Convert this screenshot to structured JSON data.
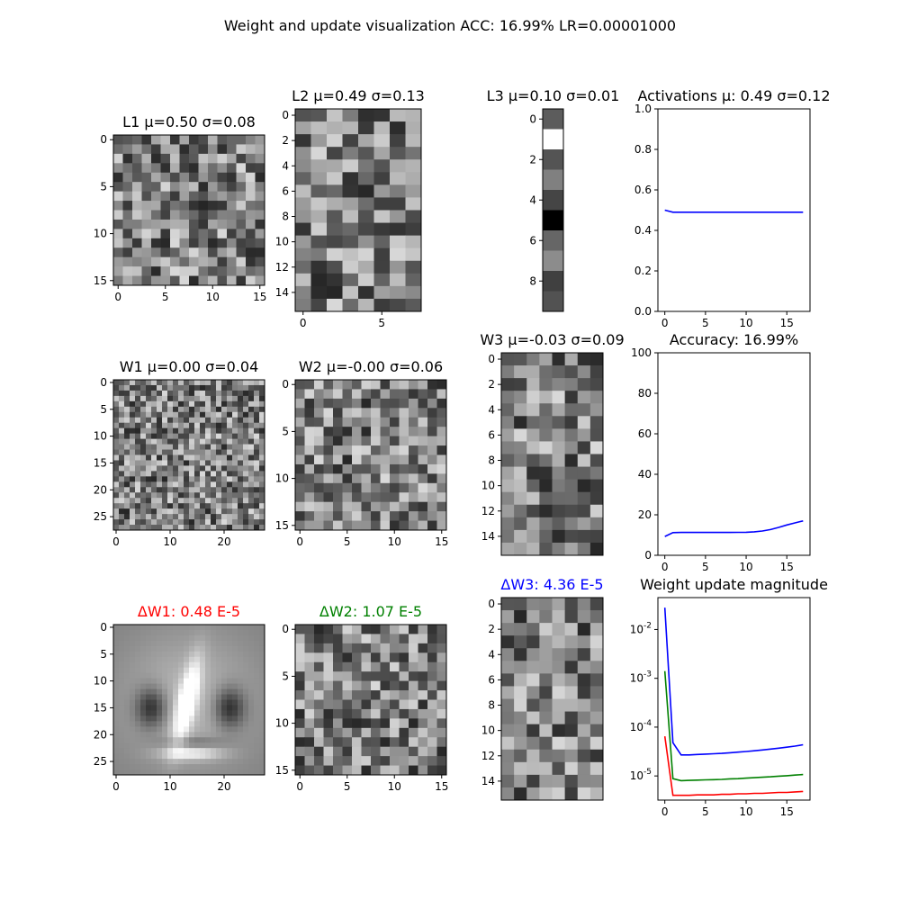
{
  "figure": {
    "suptitle": "Weight and update visualization ACC: 16.99% LR=0.00001000"
  },
  "colors": {
    "dw1": "#ff0000",
    "dw2": "#008000",
    "dw3": "#0000ff",
    "line": "#0000ff"
  },
  "chart_data": [
    {
      "id": "L1",
      "type": "heatmap",
      "title": "L1 μ=0.50 σ=0.08",
      "rows": 16,
      "cols": 16,
      "xticks": [
        0,
        5,
        10,
        15
      ],
      "yticks": [
        0,
        5,
        10,
        15
      ],
      "mean": 0.5,
      "std": 0.08,
      "seed": 11,
      "colormap": "gray"
    },
    {
      "id": "L2",
      "type": "heatmap",
      "title": "L2 μ=0.49 σ=0.13",
      "rows": 16,
      "cols": 8,
      "xticks": [
        0,
        5
      ],
      "yticks": [
        0,
        2,
        4,
        6,
        8,
        10,
        12,
        14
      ],
      "mean": 0.49,
      "std": 0.13,
      "seed": 22,
      "colormap": "gray"
    },
    {
      "id": "L3",
      "type": "heatmap",
      "title": "L3 μ=0.10 σ=0.01",
      "rows": 10,
      "cols": 1,
      "xticks": [],
      "yticks": [
        0,
        2,
        4,
        6,
        8
      ],
      "values": [
        0.36,
        1.0,
        0.33,
        0.5,
        0.27,
        0.0,
        0.4,
        0.55,
        0.25,
        0.32
      ],
      "mean": 0.1,
      "std": 0.01,
      "colormap": "gray"
    },
    {
      "id": "activations",
      "type": "line",
      "title": "Activations μ: 0.49 σ=0.12",
      "x": [
        0,
        1,
        2,
        3,
        4,
        5,
        6,
        7,
        8,
        9,
        10,
        11,
        12,
        13,
        14,
        15,
        16,
        17
      ],
      "series": [
        {
          "values": [
            0.5,
            0.49,
            0.49,
            0.49,
            0.49,
            0.49,
            0.49,
            0.49,
            0.49,
            0.49,
            0.49,
            0.49,
            0.49,
            0.49,
            0.49,
            0.49,
            0.49,
            0.49
          ],
          "color": "#0000ff"
        }
      ],
      "xlim": [
        -0.85,
        17.85
      ],
      "ylim": [
        0.0,
        1.0
      ],
      "xticks": [
        0,
        5,
        10,
        15
      ],
      "yticks": [
        0.0,
        0.2,
        0.4,
        0.6,
        0.8,
        1.0
      ],
      "ytick_labels": [
        "0.0",
        "0.2",
        "0.4",
        "0.6",
        "0.8",
        "1.0"
      ],
      "yscale": "linear"
    },
    {
      "id": "W1",
      "type": "heatmap",
      "title": "W1 μ=0.00 σ=0.04",
      "rows": 28,
      "cols": 28,
      "xticks": [
        0,
        10,
        20
      ],
      "yticks": [
        0,
        5,
        10,
        15,
        20,
        25
      ],
      "mean": 0.0,
      "std": 0.04,
      "seed": 33,
      "colormap": "gray"
    },
    {
      "id": "W2",
      "type": "heatmap",
      "title": "W2 μ=-0.00 σ=0.06",
      "rows": 16,
      "cols": 16,
      "xticks": [
        0,
        5,
        10,
        15
      ],
      "yticks": [
        0,
        5,
        10,
        15
      ],
      "mean": 0.0,
      "std": 0.06,
      "seed": 44,
      "colormap": "gray"
    },
    {
      "id": "W3",
      "type": "heatmap",
      "title": "W3 μ=-0.03 σ=0.09",
      "rows": 16,
      "cols": 8,
      "xticks": [],
      "yticks": [
        0,
        2,
        4,
        6,
        8,
        10,
        12,
        14
      ],
      "mean": -0.03,
      "std": 0.09,
      "seed": 55,
      "colormap": "gray"
    },
    {
      "id": "accuracy",
      "type": "line",
      "title": "Accuracy: 16.99%",
      "x": [
        0,
        1,
        2,
        3,
        4,
        5,
        6,
        7,
        8,
        9,
        10,
        11,
        12,
        13,
        14,
        15,
        16,
        17
      ],
      "series": [
        {
          "values": [
            9.3,
            11.2,
            11.3,
            11.3,
            11.3,
            11.3,
            11.3,
            11.3,
            11.3,
            11.35,
            11.4,
            11.6,
            12.0,
            12.7,
            13.8,
            15.0,
            16.0,
            16.99
          ],
          "color": "#0000ff"
        }
      ],
      "xlim": [
        -0.85,
        17.85
      ],
      "ylim": [
        0,
        100
      ],
      "xticks": [
        0,
        5,
        10,
        15
      ],
      "yticks": [
        0,
        20,
        40,
        60,
        80,
        100
      ],
      "ytick_labels": [
        "0",
        "20",
        "40",
        "60",
        "80",
        "100"
      ],
      "yscale": "linear"
    },
    {
      "id": "dW1",
      "type": "heatmap",
      "title": "ΔW1: 0.48 E-5",
      "title_color": "#ff0000",
      "rows": 28,
      "cols": 28,
      "xticks": [
        0,
        10,
        20
      ],
      "yticks": [
        0,
        5,
        10,
        15,
        20,
        25
      ],
      "pattern": "digit",
      "colormap": "gray"
    },
    {
      "id": "dW2",
      "type": "heatmap",
      "title": "ΔW2: 1.07 E-5",
      "title_color": "#008000",
      "rows": 16,
      "cols": 16,
      "xticks": [
        0,
        5,
        10,
        15
      ],
      "yticks": [
        0,
        5,
        10,
        15
      ],
      "seed": 66,
      "colormap": "gray"
    },
    {
      "id": "dW3",
      "type": "heatmap",
      "title": "ΔW3: 4.36 E-5",
      "title_color": "#0000ff",
      "rows": 16,
      "cols": 8,
      "xticks": [],
      "yticks": [
        0,
        2,
        4,
        6,
        8,
        10,
        12,
        14
      ],
      "seed": 77,
      "colormap": "gray"
    },
    {
      "id": "magnitude",
      "type": "line",
      "title": "Weight update magnitude",
      "x": [
        0,
        1,
        2,
        3,
        4,
        5,
        6,
        7,
        8,
        9,
        10,
        11,
        12,
        13,
        14,
        15,
        16,
        17
      ],
      "series": [
        {
          "name": "ΔW3",
          "color": "#0000ff",
          "values": [
            0.028,
            4.8e-05,
            2.7e-05,
            2.7e-05,
            2.75e-05,
            2.8e-05,
            2.85e-05,
            2.9e-05,
            2.98e-05,
            3.07e-05,
            3.17e-05,
            3.28e-05,
            3.4e-05,
            3.55e-05,
            3.7e-05,
            3.88e-05,
            4.08e-05,
            4.36e-05
          ]
        },
        {
          "name": "ΔW2",
          "color": "#008000",
          "values": [
            0.0014,
            8.8e-06,
            8e-06,
            8.1e-06,
            8.2e-06,
            8.3e-06,
            8.4e-06,
            8.5e-06,
            8.7e-06,
            8.8e-06,
            9e-06,
            9.2e-06,
            9.4e-06,
            9.6e-06,
            9.9e-06,
            1.01e-05,
            1.04e-05,
            1.07e-05
          ]
        },
        {
          "name": "ΔW1",
          "color": "#ff0000",
          "values": [
            6.5e-05,
            4e-06,
            4e-06,
            4e-06,
            4.1e-06,
            4.1e-06,
            4.1e-06,
            4.2e-06,
            4.2e-06,
            4.3e-06,
            4.3e-06,
            4.4e-06,
            4.4e-06,
            4.5e-06,
            4.6e-06,
            4.6e-06,
            4.7e-06,
            4.8e-06
          ]
        }
      ],
      "xlim": [
        -0.85,
        17.85
      ],
      "ylim": [
        3.2e-06,
        0.045
      ],
      "xticks": [
        0,
        5,
        10,
        15
      ],
      "yticks": [
        1e-05,
        0.0001,
        0.001,
        0.01
      ],
      "ytick_labels": [
        "10^-5",
        "10^-4",
        "10^-3",
        "10^-2"
      ],
      "yscale": "log"
    }
  ]
}
